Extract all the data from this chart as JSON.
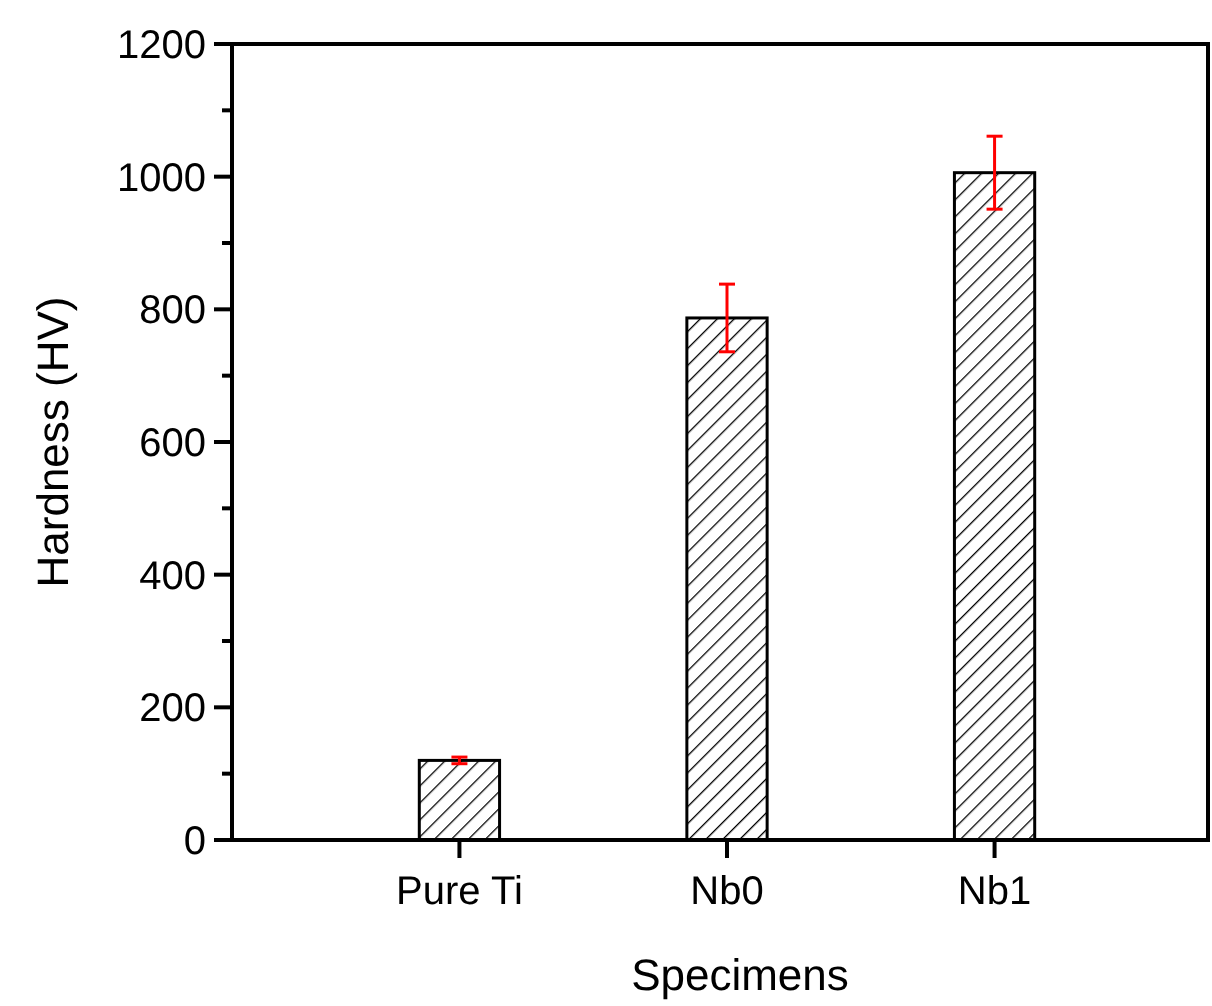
{
  "chart_data": {
    "type": "bar",
    "xlabel": "Specimens",
    "ylabel": "Hardness (HV)",
    "categories": [
      "Pure Ti",
      "Nb0",
      "Nb1"
    ],
    "values": [
      120,
      787,
      1006
    ],
    "errors": [
      5,
      51,
      55
    ],
    "color": "#000000",
    "ylim": [
      0,
      1200
    ],
    "yticks": [
      0,
      {
        "value": 100,
        "label": null
      },
      200,
      {
        "value": 300,
        "label": null
      },
      400,
      {
        "value": 500,
        "label": null
      },
      600,
      {
        "value": 700,
        "label": null
      },
      800,
      {
        "value": 900,
        "label": null
      },
      1000,
      {
        "value": 1100,
        "label": null
      },
      1200
    ],
    "grid": false
  }
}
